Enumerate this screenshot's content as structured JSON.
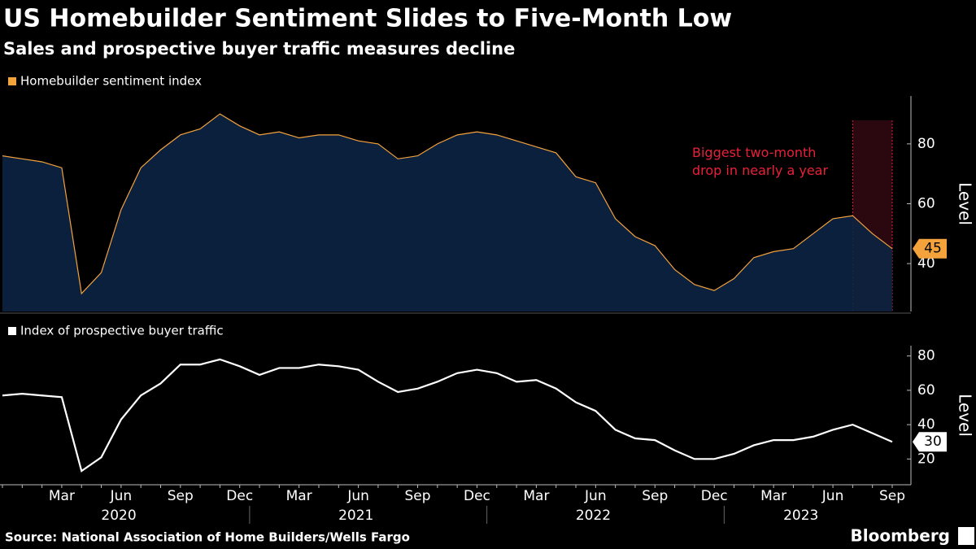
{
  "title": "US Homebuilder Sentiment Slides to Five-Month Low",
  "subtitle": "Sales and prospective buyer traffic measures decline",
  "source": "Source: National Association of Home Builders/Wells Fargo",
  "brand": "Bloomberg",
  "chart_data": [
    {
      "type": "area",
      "series": [
        {
          "name": "Homebuilder sentiment index",
          "color": "#f4a23c",
          "fill": "#0c2342",
          "values": [
            76,
            75,
            74,
            72,
            30,
            37,
            58,
            72,
            78,
            83,
            85,
            90,
            86,
            83,
            84,
            82,
            83,
            83,
            81,
            80,
            75,
            76,
            80,
            83,
            84,
            83,
            81,
            79,
            77,
            69,
            67,
            55,
            49,
            46,
            38,
            33,
            31,
            35,
            42,
            44,
            45,
            50,
            55,
            56,
            50,
            45
          ],
          "value_labels": [
            null,
            null,
            null,
            null,
            null,
            null,
            null,
            null,
            null,
            null,
            null,
            null,
            null,
            null,
            null,
            null,
            null,
            null,
            null,
            null,
            null,
            null,
            null,
            null,
            null,
            null,
            null,
            null,
            null,
            null,
            null,
            null,
            null,
            null,
            null,
            null,
            null,
            null,
            null,
            null,
            null,
            null,
            null,
            null,
            null,
            "45"
          ]
        }
      ],
      "ylim": [
        24,
        96
      ],
      "yticks": [
        40,
        60,
        80
      ],
      "y_label": "Level",
      "annotation": "Biggest two-month\ndrop in nearly a year",
      "shade_range": [
        43,
        45
      ],
      "shade_color": "#2b0810",
      "annotation_color": "#e8203a"
    },
    {
      "type": "line",
      "series": [
        {
          "name": "Index of prospective buyer traffic",
          "color": "#ffffff",
          "values": [
            57,
            58,
            57,
            56,
            13,
            21,
            43,
            57,
            64,
            75,
            75,
            78,
            74,
            69,
            73,
            73,
            75,
            74,
            72,
            65,
            59,
            61,
            65,
            70,
            72,
            70,
            65,
            66,
            61,
            53,
            48,
            37,
            32,
            31,
            25,
            20,
            20,
            23,
            28,
            31,
            31,
            33,
            37,
            40,
            35,
            30
          ],
          "value_labels": [
            null,
            null,
            null,
            null,
            null,
            null,
            null,
            null,
            null,
            null,
            null,
            null,
            null,
            null,
            null,
            null,
            null,
            null,
            null,
            null,
            null,
            null,
            null,
            null,
            null,
            null,
            null,
            null,
            null,
            null,
            null,
            null,
            null,
            null,
            null,
            null,
            null,
            null,
            null,
            null,
            null,
            null,
            null,
            null,
            null,
            "30"
          ]
        }
      ],
      "ylim": [
        5,
        86
      ],
      "yticks": [
        20,
        40,
        60,
        80
      ],
      "y_label": "Level",
      "categories": [
        null,
        null,
        null,
        "Mar",
        null,
        null,
        "Jun",
        null,
        null,
        "Sep",
        null,
        null,
        "Dec",
        null,
        null,
        "Mar",
        null,
        null,
        "Jun",
        null,
        null,
        "Sep",
        null,
        null,
        "Dec",
        null,
        null,
        "Mar",
        null,
        null,
        "Jun",
        null,
        null,
        "Sep",
        null,
        null,
        "Dec",
        null,
        null,
        "Mar",
        null,
        null,
        "Jun",
        null,
        null,
        "Sep"
      ],
      "year_labels": [
        "2020",
        "2021",
        "2022",
        "2023"
      ]
    }
  ]
}
